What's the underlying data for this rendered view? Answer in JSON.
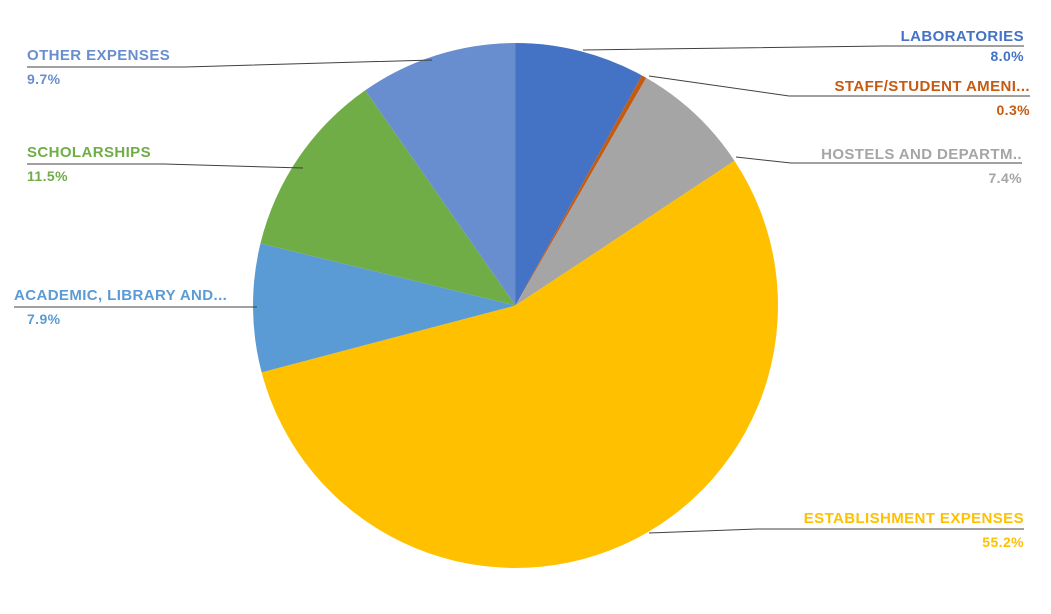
{
  "chart_data": {
    "type": "pie",
    "title": "",
    "legend_position": "none",
    "start_angle_deg": 0,
    "direction": "clockwise",
    "background": "#FFFFFF",
    "leader_line_color": "#404040",
    "slices": [
      {
        "label": "LABORATORIES",
        "value": 8.0,
        "pct_label": "8.0%",
        "color": "#4472C4"
      },
      {
        "label": "STAFF/STUDENT AMENI...",
        "value": 0.3,
        "pct_label": "0.3%",
        "color": "#C55A11"
      },
      {
        "label": "HOSTELS AND DEPARTM..",
        "value": 7.4,
        "pct_label": "7.4%",
        "color": "#A5A5A5"
      },
      {
        "label": "ESTABLISHMENT EXPENSES",
        "value": 55.2,
        "pct_label": "55.2%",
        "color": "#FFC000"
      },
      {
        "label": "ACADEMIC, LIBRARY AND...",
        "value": 7.9,
        "pct_label": "7.9%",
        "color": "#5B9BD5"
      },
      {
        "label": "SCHOLARSHIPS",
        "value": 11.5,
        "pct_label": "11.5%",
        "color": "#70AD47"
      },
      {
        "label": "OTHER EXPENSES",
        "value": 9.7,
        "pct_label": "9.7%",
        "color": "#698ED0"
      }
    ]
  }
}
